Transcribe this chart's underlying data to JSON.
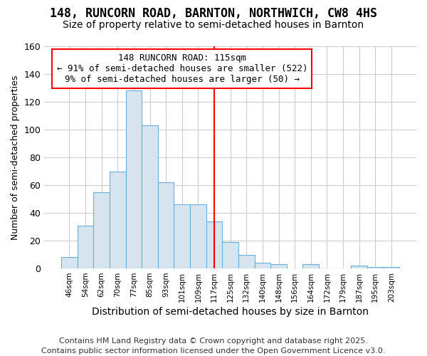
{
  "title1": "148, RUNCORN ROAD, BARNTON, NORTHWICH, CW8 4HS",
  "title2": "Size of property relative to semi-detached houses in Barnton",
  "xlabel": "Distribution of semi-detached houses by size in Barnton",
  "ylabel": "Number of semi-detached properties",
  "categories": [
    "46sqm",
    "54sqm",
    "62sqm",
    "70sqm",
    "77sqm",
    "85sqm",
    "93sqm",
    "101sqm",
    "109sqm",
    "117sqm",
    "125sqm",
    "132sqm",
    "140sqm",
    "148sqm",
    "156sqm",
    "164sqm",
    "172sqm",
    "179sqm",
    "187sqm",
    "195sqm",
    "203sqm"
  ],
  "values": [
    8,
    31,
    55,
    70,
    128,
    103,
    62,
    46,
    46,
    34,
    19,
    10,
    4,
    3,
    0,
    3,
    0,
    0,
    2,
    1,
    1
  ],
  "bar_color": "#d6e4f0",
  "bar_edge_color": "#6baed6",
  "annotation_title": "148 RUNCORN ROAD: 115sqm",
  "annotation_line1": "← 91% of semi-detached houses are smaller (522)",
  "annotation_line2": "9% of semi-detached houses are larger (50) →",
  "annotation_box_color": "white",
  "annotation_box_edge_color": "red",
  "vline_color": "red",
  "vline_x_index": 9,
  "footer": "Contains HM Land Registry data © Crown copyright and database right 2025.\nContains public sector information licensed under the Open Government Licence v3.0.",
  "ylim": [
    0,
    160
  ],
  "yticks": [
    0,
    20,
    40,
    60,
    80,
    100,
    120,
    140,
    160
  ],
  "grid_color": "#cccccc",
  "bg_color": "#ffffff",
  "plot_bg_color": "#ffffff",
  "title1_fontsize": 12,
  "title2_fontsize": 10,
  "footer_fontsize": 8,
  "annotation_fontsize": 9,
  "ylabel_fontsize": 9,
  "xlabel_fontsize": 10
}
